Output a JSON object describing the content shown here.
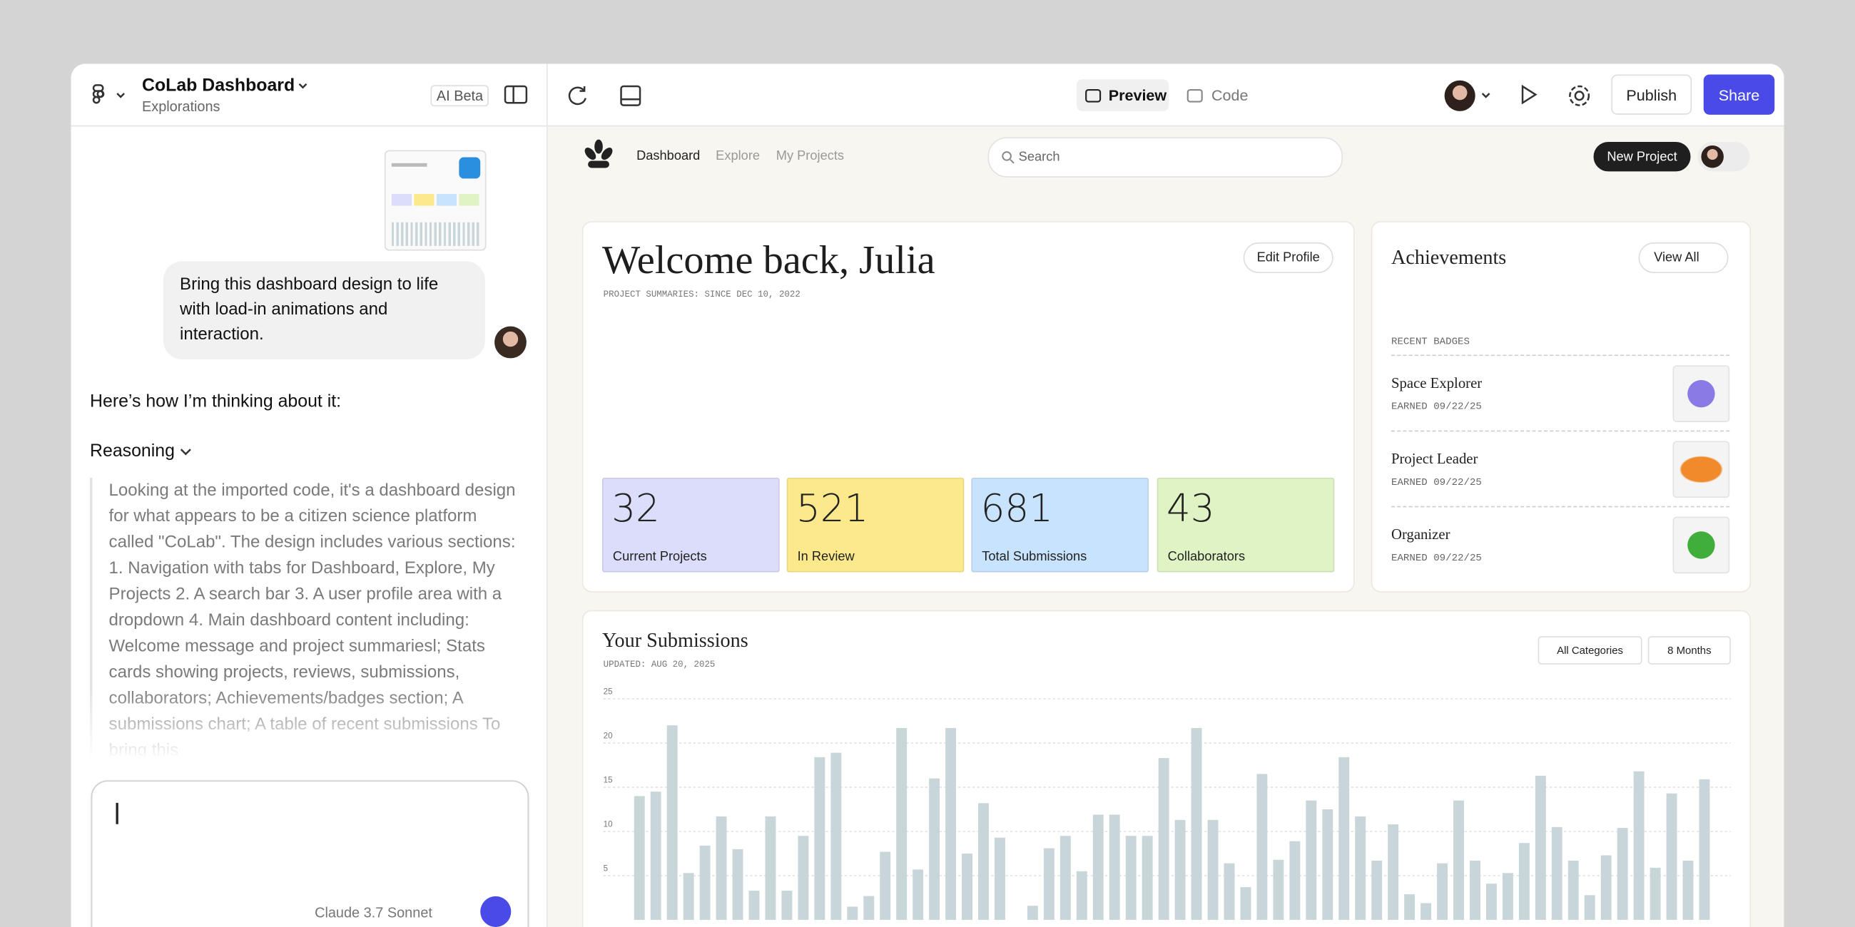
{
  "editor": {
    "project_title": "CoLab Dashboard",
    "project_subtitle": "Explorations",
    "ai_badge": "AI Beta",
    "tabs": [
      "Preview",
      "Code"
    ],
    "publish": "Publish",
    "share": "Share"
  },
  "chat": {
    "user_message": "Bring this dashboard design to life with load-in animations and interaction.",
    "intro": "Here’s how I’m thinking about it:",
    "reasoning_label": "Reasoning",
    "reasoning_text": "Looking at the imported code, it's a dashboard design for what appears to be a citizen science platform called \"CoLab\". The design includes various sections: 1. Navigation with tabs for Dashboard, Explore, My Projects 2. A search bar 3. A user profile area with a dropdown 4. Main dashboard content including: Welcome message and project summariesl; Stats cards showing projects, reviews, submissions, collaborators; Achievements/badges section; A submissions chart; A table of recent submissions To bring this",
    "model": "Claude 3.7 Sonnet"
  },
  "app": {
    "nav": [
      "Dashboard",
      "Explore",
      "My Projects"
    ],
    "search_placeholder": "Search",
    "new_project": "New Project",
    "welcome": "Welcome back, Julia",
    "edit_profile": "Edit Profile",
    "summary_note": "PROJECT SUMMARIES: SINCE DEC 10, 2022",
    "stats": [
      {
        "value": 32,
        "label": "Current Projects"
      },
      {
        "value": 521,
        "label": "In Review"
      },
      {
        "value": 681,
        "label": "Total Submissions"
      },
      {
        "value": 43,
        "label": "Collaborators"
      }
    ],
    "achievements": {
      "title": "Achievements",
      "view_all": "View All",
      "section": "RECENT BADGES",
      "badges": [
        {
          "name": "Space Explorer",
          "earned": "EARNED 09/22/25"
        },
        {
          "name": "Project Leader",
          "earned": "EARNED 09/22/25"
        },
        {
          "name": "Organizer",
          "earned": "EARNED 09/22/25"
        }
      ]
    },
    "submissions": {
      "title": "Your Submissions",
      "updated": "UPDATED: AUG 20, 2025",
      "filters": [
        "All Categories",
        "8 Months"
      ],
      "chart": {
        "type": "bar",
        "color": "#c9d6d9",
        "grid": true,
        "ylim": [
          0,
          25
        ],
        "yticks": [
          5,
          10,
          15,
          20,
          25
        ],
        "values": [
          14,
          14.5,
          22,
          5.3,
          8.4,
          11.7,
          8,
          3.3,
          11.7,
          3.3,
          9.5,
          18.4,
          18.9,
          1.5,
          2.7,
          7.7,
          21.7,
          5.7,
          16,
          21.7,
          7.5,
          13.2,
          9.3,
          0,
          1.6,
          8.1,
          9.5,
          5.5,
          11.9,
          11.9,
          9.5,
          9.5,
          18.3,
          11.3,
          21.7,
          11.3,
          6.4,
          3.7,
          16.5,
          6.8,
          8.9,
          13.5,
          12.5,
          18.4,
          11.7,
          6.7,
          10.8,
          2.9,
          1.9,
          6.4,
          13.5,
          6.7,
          4.1,
          5.3,
          8.7,
          16.3,
          10.5,
          6.7,
          2.8,
          7.3,
          10.4,
          16.8,
          5.9,
          14.3,
          6.7,
          15.9
        ]
      }
    }
  }
}
